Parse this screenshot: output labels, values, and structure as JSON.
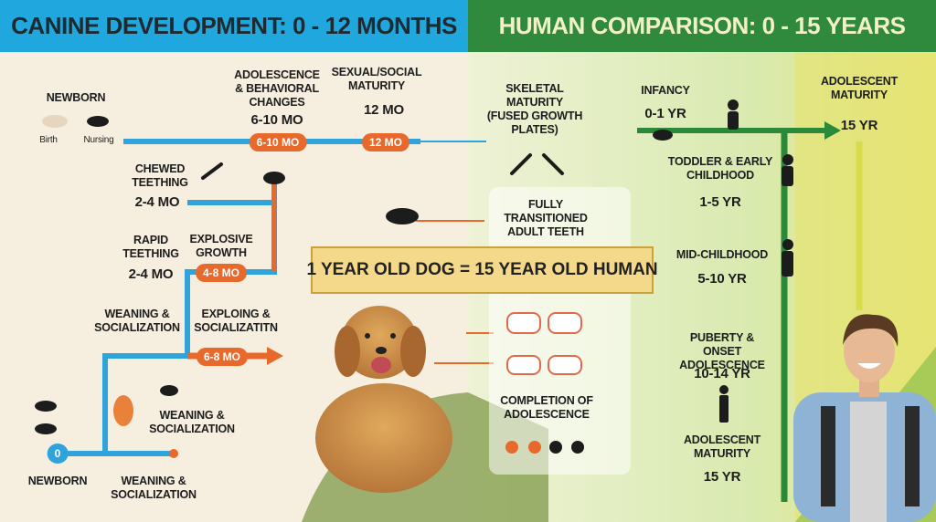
{
  "header": {
    "canine_title": "CANINE DEVELOPMENT: 0 - 12 MONTHS",
    "human_title": "HUMAN COMPARISON: 0 - 15 YEARS"
  },
  "canine": {
    "newborn": {
      "label": "NEWBORN",
      "birth": "Birth",
      "nursing": "Nursing"
    },
    "stages": [
      {
        "label": "ADOLESCENCE & BEHAVIORAL CHANGES",
        "age": "6-10 MO"
      },
      {
        "label": "SEXUAL/SOCIAL MATURITY",
        "age": "12 MO"
      },
      {
        "label": "CHEWED TEETHING",
        "age": "2-4 MO"
      },
      {
        "label": "RAPID TEETHING",
        "age": "2-4 MO"
      },
      {
        "label": "EXPLOSIVE GROWTH"
      },
      {
        "label": "WEANING & SOCIALIZATION"
      },
      {
        "label": "EXPLOING & SOCIALIZATITN"
      },
      {
        "label": "WEANING & SOCIALIZATION"
      },
      {
        "label": "NEWBORN"
      },
      {
        "label": "WEANING & SOCIALIZATION"
      }
    ],
    "badges": [
      "6-10 MO",
      "12 MO",
      "4-8 MO",
      "6-8 MO",
      "0"
    ]
  },
  "comparison": {
    "skeletal": "SKELETAL MATURITY (FUSED GROWTH PLATES)",
    "teeth": "FULLY TRANSITIONED ADULT TEETH",
    "equivalence": "1 YEAR OLD DOG = 15 YEAR OLD HUMAN",
    "completion": "COMPLETION OF ADOLESCENCE"
  },
  "human": {
    "stages": [
      {
        "label": "INFANCY",
        "age": "0-1 YR"
      },
      {
        "label": "ADOLESCENT MATURITY",
        "age": "15 YR"
      },
      {
        "label": "TODDLER & EARLY CHILDHOOD",
        "age": "1-5 YR"
      },
      {
        "label": "MID-CHILDHOOD",
        "age": "5-10 YR"
      },
      {
        "label": "PUBERTY & ONSET ADOLESCENCE",
        "age": "10-14 YR"
      },
      {
        "label": "ADOLESCENT MATURITY",
        "age": "15 YR"
      }
    ]
  }
}
